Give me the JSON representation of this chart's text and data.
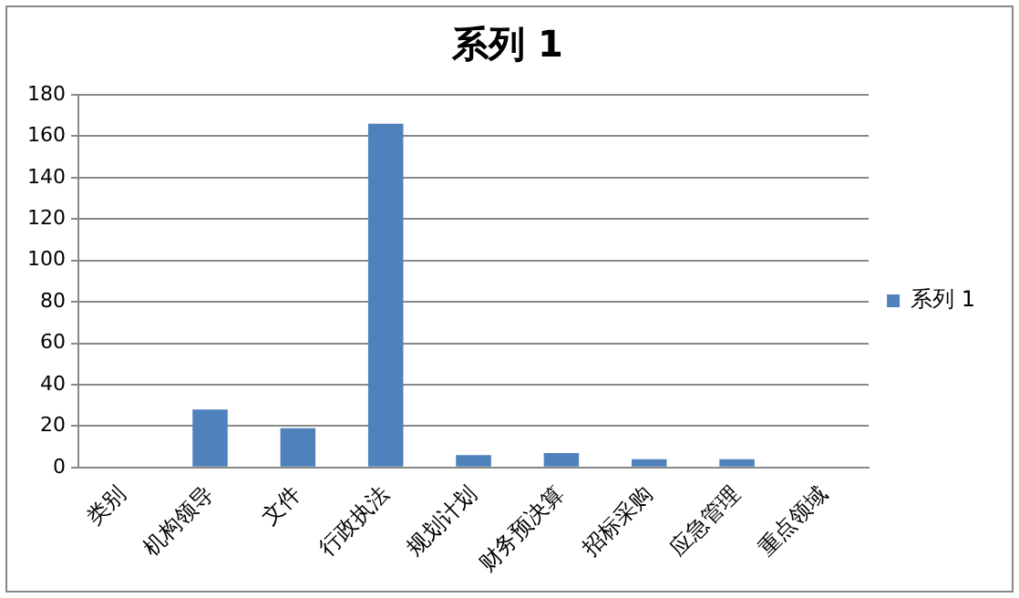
{
  "chart_data": {
    "type": "bar",
    "title": "系列 1",
    "categories": [
      "类别",
      "机构领导",
      "文件",
      "行政执法",
      "规划计划",
      "财务预决算",
      "招标采购",
      "应急管理",
      "重点领域"
    ],
    "series": [
      {
        "name": "系列 1",
        "color": "#4f81bd",
        "values": [
          null,
          28,
          19,
          166,
          6,
          7,
          4,
          4,
          null
        ]
      }
    ],
    "ylim": [
      0,
      180
    ],
    "yticks": [
      0,
      20,
      40,
      60,
      80,
      100,
      120,
      140,
      160,
      180
    ],
    "grid": "y",
    "legend": "right"
  }
}
